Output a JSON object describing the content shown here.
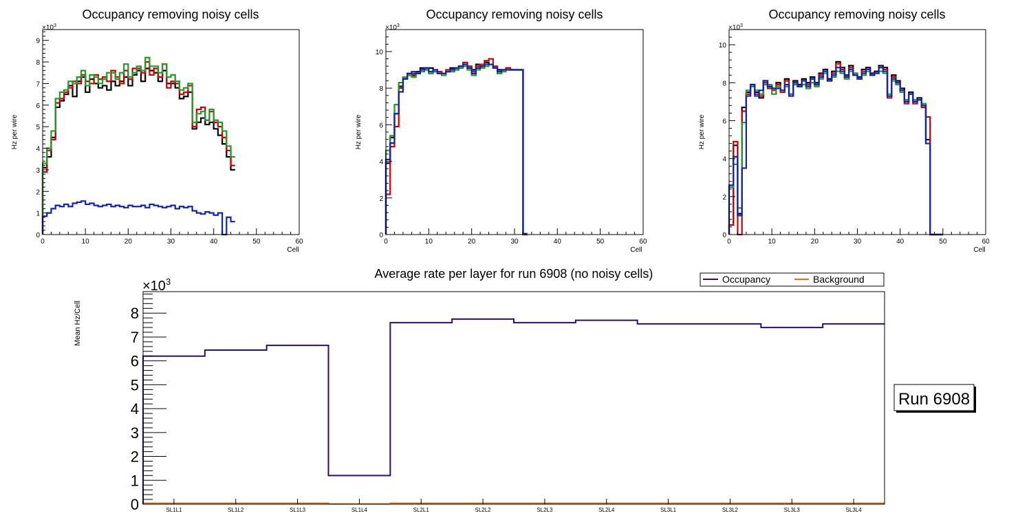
{
  "chart_data": [
    {
      "type": "line",
      "title": "Occupancy removing noisy cells",
      "xlabel": "Cell",
      "ylabel": "Hz per wire",
      "yexp": "×10",
      "yexp_sup": "3",
      "xlim": [
        0,
        60
      ],
      "ylim": [
        0,
        9.5
      ],
      "xticks": [
        "0",
        "10",
        "20",
        "30",
        "40",
        "50",
        "60"
      ],
      "yticks": [
        "0",
        "1",
        "2",
        "3",
        "4",
        "5",
        "6",
        "7",
        "8",
        "9"
      ],
      "series": [
        {
          "name": "black",
          "color": "#000000",
          "values": [
            3.1,
            3.6,
            4.5,
            5.9,
            6.2,
            6.5,
            6.9,
            6.4,
            7.1,
            7.3,
            6.6,
            7.2,
            7.0,
            6.8,
            6.9,
            6.7,
            7.1,
            6.9,
            7.1,
            7.3,
            6.9,
            7.4,
            7.6,
            7.1,
            7.7,
            7.6,
            7.5,
            7.1,
            7.6,
            7.0,
            7.0,
            6.8,
            6.3,
            6.4,
            6.6,
            4.9,
            5.2,
            5.4,
            5.1,
            5.2,
            4.9,
            4.6,
            4.2,
            3.6,
            3.0
          ]
        },
        {
          "name": "red",
          "color": "#cc0000",
          "values": [
            2.9,
            3.9,
            4.4,
            6.1,
            6.3,
            6.6,
            6.8,
            7.1,
            7.0,
            7.4,
            7.1,
            7.0,
            7.4,
            7.2,
            7.3,
            7.1,
            7.6,
            7.3,
            7.0,
            7.6,
            7.2,
            7.7,
            7.7,
            7.5,
            8.0,
            7.4,
            7.7,
            7.3,
            7.9,
            6.8,
            7.1,
            7.0,
            6.5,
            6.6,
            6.9,
            5.0,
            5.8,
            5.9,
            5.3,
            5.7,
            5.2,
            5.0,
            4.5,
            3.9,
            3.2
          ]
        },
        {
          "name": "green",
          "color": "#229922",
          "values": [
            3.3,
            4.0,
            4.8,
            6.3,
            6.6,
            6.7,
            7.1,
            7.0,
            7.3,
            7.6,
            6.9,
            7.4,
            7.3,
            7.0,
            7.2,
            7.5,
            7.5,
            7.2,
            7.5,
            7.9,
            7.3,
            7.5,
            7.8,
            7.6,
            8.2,
            7.8,
            7.8,
            7.5,
            7.9,
            7.3,
            7.4,
            7.1,
            6.7,
            6.8,
            7.0,
            5.2,
            5.6,
            5.7,
            5.3,
            5.8,
            5.3,
            5.2,
            4.8,
            4.1,
            3.6
          ]
        },
        {
          "name": "blue",
          "color": "#1122bb",
          "values": [
            0.85,
            1.0,
            1.2,
            1.35,
            1.3,
            1.4,
            1.3,
            1.45,
            1.5,
            1.55,
            1.4,
            1.45,
            1.35,
            1.3,
            1.35,
            1.4,
            1.3,
            1.35,
            1.3,
            1.25,
            1.35,
            1.3,
            1.3,
            1.35,
            1.25,
            1.4,
            1.35,
            1.3,
            1.25,
            1.3,
            1.35,
            1.2,
            1.3,
            1.25,
            1.3,
            1.1,
            1.0,
            0.95,
            1.05,
            1.0,
            0.9,
            1.0,
            0.0,
            0.8,
            0.6
          ]
        }
      ]
    },
    {
      "type": "line",
      "title": "Occupancy removing noisy cells",
      "xlabel": "Cell",
      "ylabel": "Hz per wire",
      "yexp": "×10",
      "yexp_sup": "3",
      "xlim": [
        0,
        60
      ],
      "ylim": [
        0,
        11.2
      ],
      "xticks": [
        "0",
        "10",
        "20",
        "30",
        "40",
        "50",
        "60"
      ],
      "yticks": [
        "0",
        "2",
        "4",
        "6",
        "8",
        "10"
      ],
      "series": [
        {
          "name": "black",
          "color": "#000000",
          "values": [
            3.9,
            5.3,
            6.6,
            8.1,
            8.6,
            8.8,
            8.7,
            8.9,
            9.1,
            9.0,
            9.1,
            8.9,
            8.9,
            8.8,
            8.9,
            9.1,
            9.0,
            9.2,
            9.3,
            9.1,
            9.0,
            9.3,
            9.2,
            9.4,
            9.3,
            9.1,
            9.0,
            9.0,
            9.1,
            9.0,
            9.0,
            9.0,
            0.0
          ]
        },
        {
          "name": "red",
          "color": "#cc0000",
          "values": [
            2.2,
            4.8,
            5.9,
            8.0,
            8.5,
            8.7,
            8.8,
            8.8,
            9.0,
            9.1,
            8.9,
            9.0,
            8.9,
            8.8,
            9.0,
            9.0,
            9.1,
            9.2,
            9.4,
            9.2,
            8.9,
            9.2,
            9.3,
            9.5,
            9.6,
            9.2,
            8.9,
            9.0,
            9.1,
            9.0,
            9.0,
            9.0,
            0.0
          ]
        },
        {
          "name": "green",
          "color": "#229922",
          "values": [
            4.6,
            5.4,
            7.1,
            8.3,
            8.6,
            8.7,
            8.6,
            8.8,
            8.9,
            9.0,
            8.8,
            8.9,
            8.8,
            8.7,
            8.9,
            8.9,
            9.0,
            9.1,
            9.2,
            9.0,
            8.7,
            9.0,
            9.1,
            9.2,
            9.3,
            9.1,
            8.8,
            8.9,
            9.0,
            9.0,
            9.0,
            9.0,
            0.0
          ]
        },
        {
          "name": "blue",
          "color": "#1122bb",
          "values": [
            4.1,
            5.0,
            6.6,
            7.8,
            8.5,
            8.8,
            8.9,
            8.8,
            9.0,
            9.1,
            8.9,
            9.0,
            8.8,
            8.8,
            8.9,
            9.0,
            9.1,
            9.2,
            9.3,
            9.1,
            8.8,
            9.1,
            9.2,
            9.3,
            9.3,
            9.1,
            8.9,
            9.0,
            9.0,
            9.0,
            9.0,
            9.0,
            0.05
          ]
        }
      ]
    },
    {
      "type": "line",
      "title": "Occupancy removing noisy cells",
      "xlabel": "Cell",
      "ylabel": "Hz per wire",
      "yexp": "×10",
      "yexp_sup": "3",
      "xlim": [
        0,
        60
      ],
      "ylim": [
        0,
        10.8
      ],
      "xticks": [
        "0",
        "10",
        "20",
        "30",
        "40",
        "50",
        "60"
      ],
      "yticks": [
        "0",
        "2",
        "4",
        "6",
        "8",
        "10"
      ],
      "series": [
        {
          "name": "black",
          "color": "#000000",
          "values": [
            0.5,
            4.7,
            1.1,
            6.7,
            7.5,
            7.9,
            7.5,
            7.2,
            8.1,
            7.8,
            7.7,
            8.0,
            7.6,
            8.2,
            7.4,
            8.1,
            7.9,
            8.2,
            8.0,
            8.3,
            8.0,
            8.5,
            8.7,
            8.2,
            8.6,
            9.1,
            8.8,
            8.4,
            8.9,
            8.5,
            8.3,
            8.7,
            8.8,
            8.5,
            8.6,
            8.9,
            8.8,
            7.3,
            8.4,
            8.1,
            7.7,
            7.0,
            7.5,
            7.0,
            7.2,
            6.8,
            5.0,
            0.0,
            0.0,
            0.0
          ]
        },
        {
          "name": "red",
          "color": "#cc0000",
          "values": [
            0.5,
            4.9,
            0.0,
            6.5,
            7.4,
            7.8,
            7.4,
            7.3,
            8.0,
            7.7,
            7.6,
            7.9,
            7.5,
            8.1,
            7.3,
            8.0,
            7.8,
            8.1,
            7.9,
            8.2,
            7.9,
            8.4,
            8.6,
            8.1,
            8.5,
            9.0,
            8.7,
            8.3,
            8.8,
            8.4,
            8.2,
            8.6,
            8.7,
            8.4,
            8.5,
            8.8,
            8.7,
            7.2,
            8.3,
            8.0,
            7.6,
            6.9,
            7.4,
            6.9,
            7.1,
            6.7,
            6.2,
            0.0,
            0.0,
            0.0
          ]
        },
        {
          "name": "green",
          "color": "#229922",
          "values": [
            2.5,
            3.7,
            1.4,
            5.9,
            7.6,
            7.8,
            7.6,
            7.4,
            7.9,
            7.9,
            7.4,
            7.8,
            7.6,
            7.8,
            7.4,
            7.9,
            7.8,
            7.9,
            7.7,
            8.0,
            7.8,
            8.2,
            8.5,
            8.1,
            8.3,
            8.6,
            8.5,
            8.2,
            8.6,
            8.5,
            8.2,
            8.4,
            8.6,
            8.4,
            8.5,
            8.6,
            8.5,
            7.4,
            8.1,
            7.9,
            7.5,
            7.1,
            7.4,
            7.1,
            7.1,
            6.9,
            4.8,
            0.0,
            0.0,
            0.0
          ]
        },
        {
          "name": "blue",
          "color": "#1122bb",
          "values": [
            2.6,
            4.1,
            1.0,
            3.5,
            7.3,
            7.9,
            7.3,
            7.6,
            8.1,
            7.8,
            7.7,
            7.7,
            7.6,
            7.9,
            7.3,
            8.0,
            7.8,
            8.1,
            7.8,
            8.2,
            7.9,
            8.3,
            8.6,
            8.1,
            8.4,
            8.8,
            8.6,
            8.3,
            8.7,
            8.4,
            8.2,
            8.5,
            8.7,
            8.4,
            8.5,
            8.8,
            8.6,
            7.3,
            8.2,
            8.0,
            7.6,
            7.0,
            7.4,
            7.0,
            7.1,
            6.8,
            4.8,
            0.0,
            0.0,
            0.0
          ]
        }
      ]
    },
    {
      "type": "line",
      "title": "Average rate per layer for run 6908 (no noisy cells)",
      "xlabel": "",
      "ylabel": "Mean Hz/Cell",
      "yexp": "×10",
      "yexp_sup": "3",
      "ylim": [
        0,
        8.9
      ],
      "categories": [
        "SL1L1",
        "SL1L2",
        "SL1L3",
        "SL1L4",
        "SL2L1",
        "SL2L2",
        "SL2L3",
        "SL2L4",
        "SL3L1",
        "SL3L2",
        "SL3L3",
        "SL3L4"
      ],
      "yticks": [
        "0",
        "1",
        "2",
        "3",
        "4",
        "5",
        "6",
        "7",
        "8"
      ],
      "series": [
        {
          "name": "Occupancy",
          "color": "#2b0a7a",
          "values": [
            6.2,
            6.45,
            6.65,
            1.2,
            7.6,
            7.75,
            7.6,
            7.7,
            7.55,
            7.55,
            7.4,
            7.55
          ]
        },
        {
          "name": "Background",
          "color": "#e07010",
          "values": [
            0.04,
            0.04,
            0.04,
            0.01,
            0.04,
            0.04,
            0.04,
            0.04,
            0.04,
            0.04,
            0.04,
            0.04
          ]
        }
      ],
      "legend": {
        "occupancy": "Occupancy",
        "background": "Background"
      },
      "run_label": "Run 6908"
    }
  ]
}
